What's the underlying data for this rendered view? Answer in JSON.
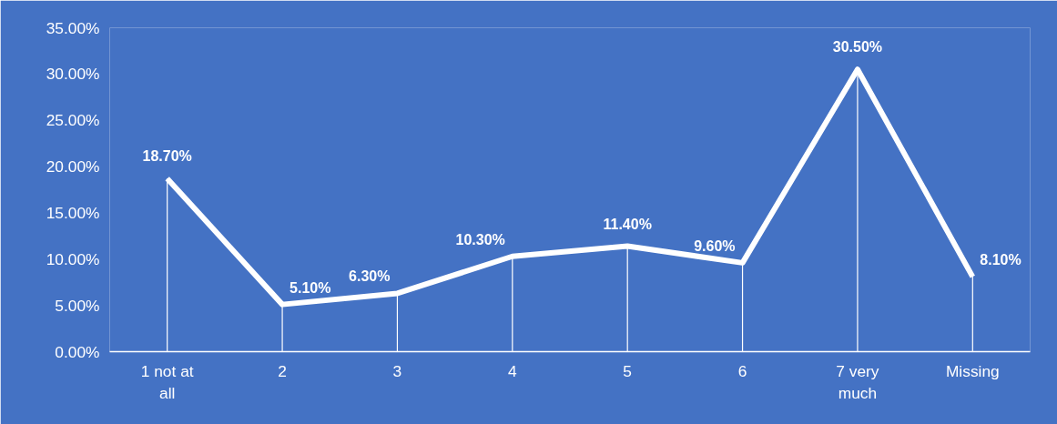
{
  "chart_data": {
    "type": "line",
    "categories": [
      "1 not at all",
      "2",
      "3",
      "4",
      "5",
      "6",
      "7 very much",
      "Missing"
    ],
    "series": [
      {
        "color": "#ffffff",
        "values": [
          18.7,
          5.1,
          6.3,
          10.3,
          11.4,
          9.6,
          30.5,
          8.1
        ],
        "value_labels": [
          "18.70%",
          "5.10%",
          "6.30%",
          "10.30%",
          "11.40%",
          "9.60%",
          "30.50%",
          "8.10%"
        ]
      }
    ],
    "ylim": [
      0,
      35
    ],
    "yticks": [
      {
        "value": 0,
        "label": "0.00%"
      },
      {
        "value": 5,
        "label": "5.00%"
      },
      {
        "value": 10,
        "label": "10.00%"
      },
      {
        "value": 15,
        "label": "15.00%"
      },
      {
        "value": 20,
        "label": "20.00%"
      },
      {
        "value": 25,
        "label": "25.00%"
      },
      {
        "value": 30,
        "label": "30.00%"
      },
      {
        "value": 35,
        "label": "35.00%"
      }
    ],
    "marker": "none",
    "line_style": "solid"
  }
}
